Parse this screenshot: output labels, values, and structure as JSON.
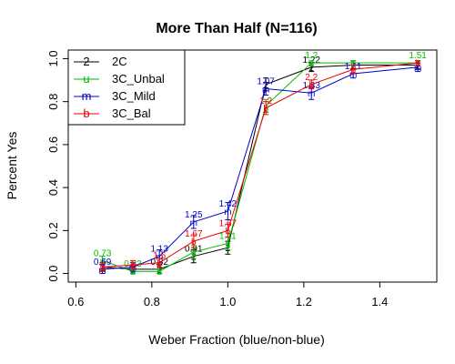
{
  "chart_data": {
    "type": "line",
    "title": "More Than Half (N=116)",
    "xlabel": "Weber Fraction (blue/non-blue)",
    "ylabel": "Percent Yes",
    "xlim": [
      0.58,
      1.55
    ],
    "ylim": [
      -0.04,
      1.04
    ],
    "xticks": [
      0.6,
      0.8,
      1.0,
      1.2,
      1.4
    ],
    "xtick_labels": [
      "0.6",
      "0.8",
      "1.0",
      "1.2",
      "1.4"
    ],
    "yticks": [
      0.0,
      0.2,
      0.4,
      0.6,
      0.8,
      1.0
    ],
    "ytick_labels": [
      "0.0",
      "0.2",
      "0.4",
      "0.6",
      "0.8",
      "1.0"
    ],
    "legend_position": "top-left",
    "series": [
      {
        "name": "2C",
        "symbol": "2",
        "color": "#000000",
        "x": [
          0.67,
          0.75,
          0.82,
          0.91,
          1.0,
          1.1,
          1.22,
          1.33,
          1.5
        ],
        "y": [
          0.03,
          0.02,
          0.02,
          0.08,
          0.12,
          0.88,
          0.96,
          0.97,
          0.97
        ],
        "err": [
          0.02,
          0.02,
          0.02,
          0.03,
          0.03,
          0.03,
          0.02,
          0.02,
          0.02
        ],
        "point_labels": [
          "",
          "",
          "0.82",
          "0.91",
          "",
          "",
          "1.22",
          "",
          ""
        ]
      },
      {
        "name": "3C_Unbal",
        "symbol": "u",
        "color": "#00bb00",
        "x": [
          0.67,
          0.75,
          0.82,
          0.91,
          1.0,
          1.1,
          1.22,
          1.33,
          1.5
        ],
        "y": [
          0.06,
          0.01,
          0.01,
          0.1,
          0.14,
          0.78,
          0.98,
          0.98,
          0.98
        ],
        "err": [
          0.02,
          0.01,
          0.01,
          0.03,
          0.03,
          0.03,
          0.01,
          0.01,
          0.01
        ],
        "point_labels": [
          "0.73",
          "0.83",
          "",
          "",
          "1.11",
          "",
          "1.2",
          "",
          "1.51"
        ]
      },
      {
        "name": "3C_Mild",
        "symbol": "m",
        "color": "#0000cc",
        "x": [
          0.67,
          0.75,
          0.82,
          0.91,
          1.0,
          1.1,
          1.22,
          1.33,
          1.5
        ],
        "y": [
          0.02,
          0.03,
          0.08,
          0.24,
          0.29,
          0.86,
          0.84,
          0.93,
          0.96
        ],
        "err": [
          0.02,
          0.02,
          0.03,
          0.03,
          0.04,
          0.03,
          0.03,
          0.02,
          0.02
        ],
        "point_labels": [
          "0.69",
          "",
          "1.13",
          "1.25",
          "1.42",
          "1.07",
          "1.33",
          "1.11",
          ""
        ]
      },
      {
        "name": "3C_Bal",
        "symbol": "b",
        "color": "#ee0000",
        "x": [
          0.67,
          0.75,
          0.82,
          0.91,
          1.0,
          1.1,
          1.22,
          1.33,
          1.5
        ],
        "y": [
          0.03,
          0.04,
          0.05,
          0.15,
          0.2,
          0.77,
          0.88,
          0.95,
          0.98
        ],
        "err": [
          0.02,
          0.02,
          0.02,
          0.03,
          0.03,
          0.03,
          0.02,
          0.02,
          0.01
        ],
        "point_labels": [
          "",
          "",
          "1.5",
          "1.67",
          "1.67",
          "1.2",
          "2.2",
          "",
          ""
        ]
      }
    ]
  }
}
